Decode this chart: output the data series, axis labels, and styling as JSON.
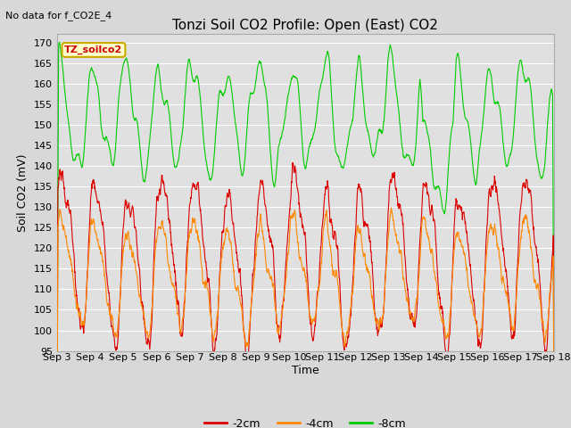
{
  "title": "Tonzi Soil CO2 Profile: Open (East) CO2",
  "subtitle": "No data for f_CO2E_4",
  "ylabel": "Soil CO2 (mV)",
  "xlabel": "Time",
  "ylim": [
    95,
    172
  ],
  "yticks": [
    95,
    100,
    105,
    110,
    115,
    120,
    125,
    130,
    135,
    140,
    145,
    150,
    155,
    160,
    165,
    170
  ],
  "legend_labels": [
    "-2cm",
    "-4cm",
    "-8cm"
  ],
  "legend_colors": [
    "#dd0000",
    "#ff8800",
    "#00cc00"
  ],
  "line_colors": {
    "2cm": "#dd0000",
    "4cm": "#ff8800",
    "8cm": "#00cc00"
  },
  "box_label": "TZ_soilco2",
  "box_color": "#ffffcc",
  "box_edge_color": "#ccaa00",
  "fig_bg_color": "#d8d8d8",
  "plot_bg_color": "#e0e0e0",
  "grid_color": "#ffffff",
  "title_fontsize": 11,
  "label_fontsize": 9,
  "tick_fontsize": 8,
  "subtitle_fontsize": 8
}
